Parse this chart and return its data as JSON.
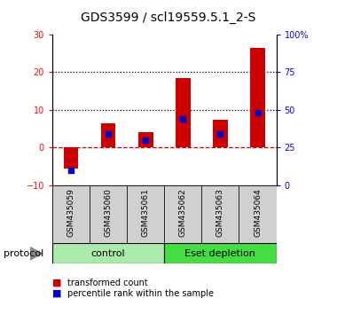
{
  "title": "GDS3599 / scl19559.5.1_2-S",
  "categories": [
    "GSM435059",
    "GSM435060",
    "GSM435061",
    "GSM435062",
    "GSM435063",
    "GSM435064"
  ],
  "bar_values": [
    -5.5,
    6.5,
    4.0,
    18.5,
    7.5,
    26.5
  ],
  "percentile_values": [
    10.0,
    34.0,
    30.0,
    44.0,
    34.0,
    48.0
  ],
  "left_ylim": [
    -10,
    30
  ],
  "right_ylim": [
    0,
    100
  ],
  "left_yticks": [
    -10,
    0,
    10,
    20,
    30
  ],
  "right_yticks": [
    0,
    25,
    50,
    75,
    100
  ],
  "right_yticklabels": [
    "0",
    "25",
    "50",
    "75",
    "100%"
  ],
  "bar_color": "#cc0000",
  "percentile_color": "#0000cc",
  "hline_zero_color": "#cc0000",
  "hline_dotted_values": [
    10,
    20
  ],
  "bg_color": "#ffffff",
  "control_color": "#aaeaaa",
  "eset_color": "#44dd44",
  "legend_items": [
    "transformed count",
    "percentile rank within the sample"
  ],
  "title_fontsize": 10,
  "tick_fontsize": 7,
  "cat_fontsize": 6.5,
  "proto_fontsize": 8,
  "legend_fontsize": 7,
  "bar_width": 0.4,
  "pct_marker_size": 5
}
